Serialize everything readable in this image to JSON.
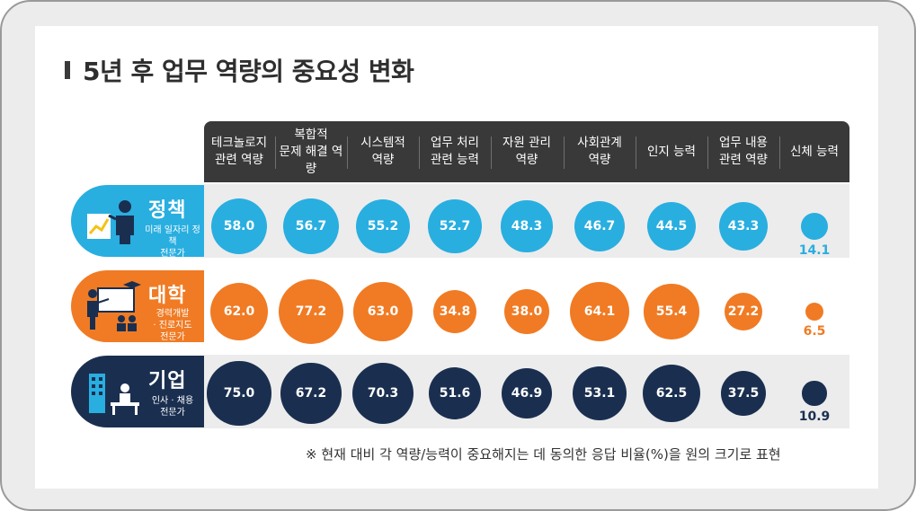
{
  "title": "5년 후 업무 역량의 중요성 변화",
  "footnote": "※ 현재 대비 각 역량/능력이 중요해지는 데 동의한 응답 비율(%)을 원의 크기로 표현",
  "colors": {
    "policy": "#29aee0",
    "university": "#f07b24",
    "company": "#1a2f50",
    "header": "#393939"
  },
  "rows": [
    {
      "title": "정책",
      "subtitle": "미래 일자리 정책\n전문가",
      "icon": "person-chart-icon"
    },
    {
      "title": "대학",
      "subtitle": "경력개발\n· 진로지도\n전문가",
      "icon": "teacher-board-icon"
    },
    {
      "title": "기업",
      "subtitle": "인사 · 채용\n전문가",
      "icon": "office-desk-icon"
    }
  ],
  "chart_data": {
    "type": "bubble",
    "categories": [
      "테크놀로지\n관련 역량",
      "복합적\n문제 해결 역량",
      "시스템적\n역량",
      "업무 처리\n관련 능력",
      "자원 관리\n역량",
      "사회관계\n역량",
      "인지 능력",
      "업무 내용\n관련 역량",
      "신체 능력"
    ],
    "series": [
      {
        "name": "정책",
        "values": [
          58.0,
          56.7,
          55.2,
          52.7,
          48.3,
          46.7,
          44.5,
          43.3,
          14.1
        ]
      },
      {
        "name": "대학",
        "values": [
          62.0,
          77.2,
          63.0,
          34.8,
          38.0,
          64.1,
          55.4,
          27.2,
          6.5
        ]
      },
      {
        "name": "기업",
        "values": [
          75.0,
          67.2,
          70.3,
          51.6,
          46.9,
          53.1,
          62.5,
          37.5,
          10.9
        ]
      }
    ],
    "value_labels": [
      [
        "58.0",
        "56.7",
        "55.2",
        "52.7",
        "48.3",
        "46.7",
        "44.5",
        "43.3",
        "14.1"
      ],
      [
        "62.0",
        "77.2",
        "63.0",
        "34.8",
        "38.0",
        "64.1",
        "55.4",
        "27.2",
        "6.5"
      ],
      [
        "75.0",
        "67.2",
        "70.3",
        "51.6",
        "46.9",
        "53.1",
        "62.5",
        "37.5",
        "10.9"
      ]
    ]
  }
}
